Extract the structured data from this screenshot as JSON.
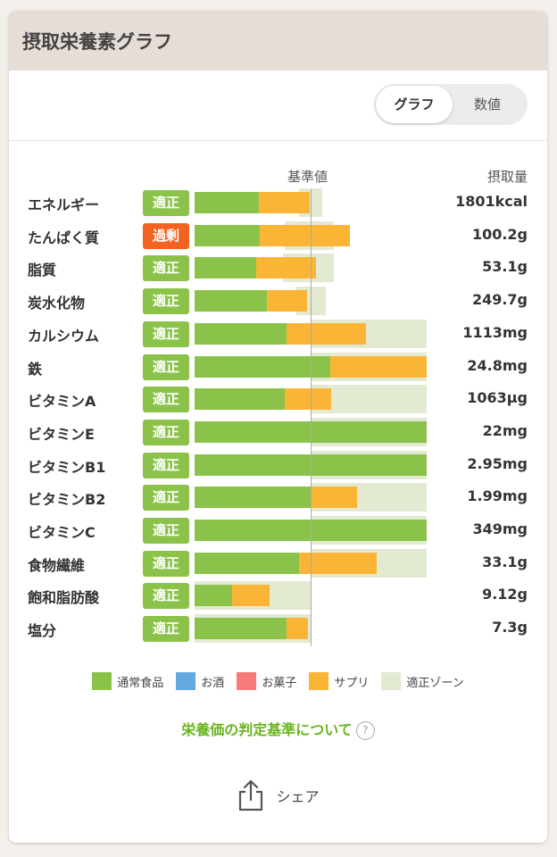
{
  "card": {
    "title": "摂取栄養素グラフ"
  },
  "toggle": {
    "graph_label": "グラフ",
    "number_label": "数値"
  },
  "table": {
    "ref_header": "基準値",
    "amount_header": "摂取量"
  },
  "chart_data": {
    "type": "bar",
    "title": "摂取栄養素グラフ",
    "reference_label": "基準値",
    "value_label": "摂取量",
    "scale_note": "bar lengths are percent of the 基準値 reference line (100 = reference)",
    "rows": [
      {
        "name": "エネルギー",
        "status": "適正",
        "status_type": "ok",
        "amount": "1801kcal",
        "food": 55,
        "supp": 44,
        "zone": [
          90,
          110
        ]
      },
      {
        "name": "たんぱく質",
        "status": "過剰",
        "status_type": "over",
        "amount": "100.2g",
        "food": 56,
        "supp": 78,
        "zone": [
          78,
          120
        ]
      },
      {
        "name": "脂質",
        "status": "適正",
        "status_type": "ok",
        "amount": "53.1g",
        "food": 53,
        "supp": 52,
        "zone": [
          76,
          120
        ]
      },
      {
        "name": "炭水化物",
        "status": "適正",
        "status_type": "ok",
        "amount": "249.7g",
        "food": 62,
        "supp": 35,
        "zone": [
          88,
          113
        ]
      },
      {
        "name": "カルシウム",
        "status": "適正",
        "status_type": "ok",
        "amount": "1113mg",
        "food": 79,
        "supp": 69,
        "zone": [
          100,
          200
        ]
      },
      {
        "name": "鉄",
        "status": "適正",
        "status_type": "ok",
        "amount": "24.8mg",
        "food": 117,
        "supp": 83,
        "zone": [
          100,
          200
        ]
      },
      {
        "name": "ビタミンA",
        "status": "適正",
        "status_type": "ok",
        "amount": "1063µg",
        "food": 78,
        "supp": 40,
        "zone": [
          100,
          200
        ]
      },
      {
        "name": "ビタミンE",
        "status": "適正",
        "status_type": "ok",
        "amount": "22mg",
        "food": 200,
        "supp": 0,
        "zone": [
          100,
          200
        ]
      },
      {
        "name": "ビタミンB1",
        "status": "適正",
        "status_type": "ok",
        "amount": "2.95mg",
        "food": 200,
        "supp": 0,
        "zone": [
          100,
          200
        ]
      },
      {
        "name": "ビタミンB2",
        "status": "適正",
        "status_type": "ok",
        "amount": "1.99mg",
        "food": 100,
        "supp": 40,
        "zone": [
          100,
          200
        ]
      },
      {
        "name": "ビタミンC",
        "status": "適正",
        "status_type": "ok",
        "amount": "349mg",
        "food": 200,
        "supp": 0,
        "zone": [
          100,
          200
        ]
      },
      {
        "name": "食物繊維",
        "status": "適正",
        "status_type": "ok",
        "amount": "33.1g",
        "food": 90,
        "supp": 67,
        "zone": [
          100,
          200
        ]
      },
      {
        "name": "飽和脂肪酸",
        "status": "適正",
        "status_type": "ok",
        "amount": "9.12g",
        "food": 32,
        "supp": 33,
        "zone": [
          0,
          100
        ]
      },
      {
        "name": "塩分",
        "status": "適正",
        "status_type": "ok",
        "amount": "7.3g",
        "food": 79,
        "supp": 19,
        "zone": [
          0,
          100
        ]
      }
    ]
  },
  "legend": [
    {
      "label": "通常食品",
      "color": "#8bc34a"
    },
    {
      "label": "お酒",
      "color": "#64a8e0"
    },
    {
      "label": "お菓子",
      "color": "#f77b7b"
    },
    {
      "label": "サプリ",
      "color": "#fbb536"
    },
    {
      "label": "適正ゾーン",
      "color": "#e2ead2"
    }
  ],
  "criteria_link": "栄養価の判定基準について",
  "share_label": "シェア"
}
